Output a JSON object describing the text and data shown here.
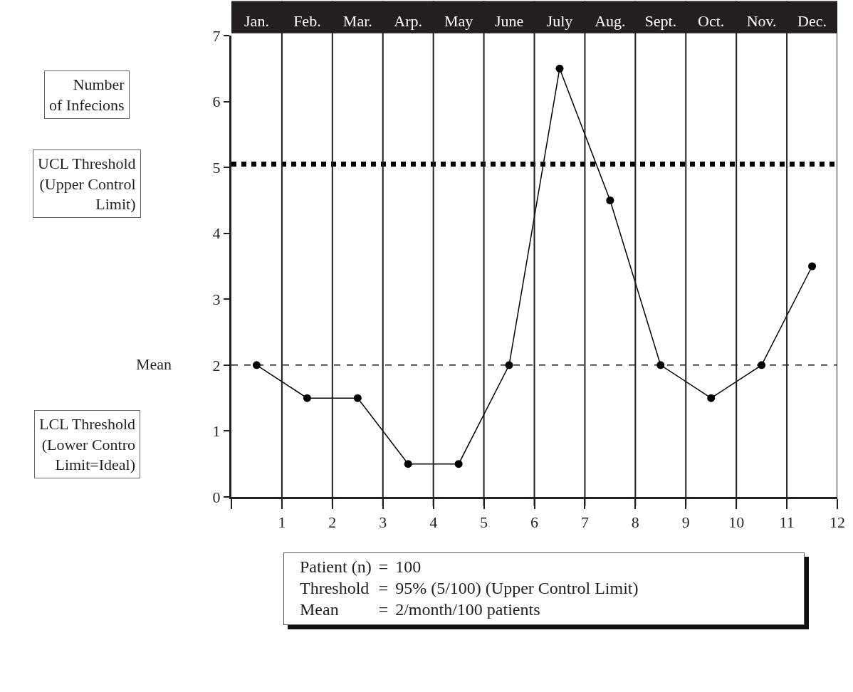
{
  "chart_data": {
    "type": "line",
    "categories": [
      "Jan.",
      "Feb.",
      "Mar.",
      "Arp.",
      "May",
      "June",
      "July",
      "Aug.",
      "Sept.",
      "Oct.",
      "Nov.",
      "Dec."
    ],
    "series": [
      {
        "color": "#000000",
        "values": [
          2,
          1.5,
          1.5,
          0.5,
          0.5,
          2,
          6.5,
          4.5,
          2,
          1.5,
          2,
          3.5
        ]
      }
    ],
    "marker": "circle",
    "line_style": "solid",
    "x2lim": [
      0,
      12
    ],
    "x2ticks": [
      {
        "value": 0,
        "label": null
      },
      1,
      2,
      3,
      4,
      5,
      6,
      7,
      8,
      9,
      10,
      11,
      12
    ],
    "ylim": [
      0,
      7
    ],
    "yticks": [
      0,
      1,
      2,
      3,
      4,
      5,
      6,
      7
    ],
    "grid": "x",
    "legend": false,
    "ref_lines": [
      {
        "axis": "y",
        "value": 5.05,
        "color": "#000000",
        "line_style": "dotted"
      },
      {
        "axis": "y",
        "value": 2,
        "color": "#000000",
        "line_style": "dashed"
      }
    ],
    "annotations": [
      "Number\nof Infecions",
      "UCL Threshold\n(Upper Control\nLimit)",
      "Mean",
      "LCL Threshold\n(Lower Contro\nLimit=Ideal)",
      "Patient (n)\t=\t100",
      "Threshold\t=\t95% (5/100) (Upper Control Limit)",
      "Mean\t=\t2/month/100 patients"
    ]
  }
}
